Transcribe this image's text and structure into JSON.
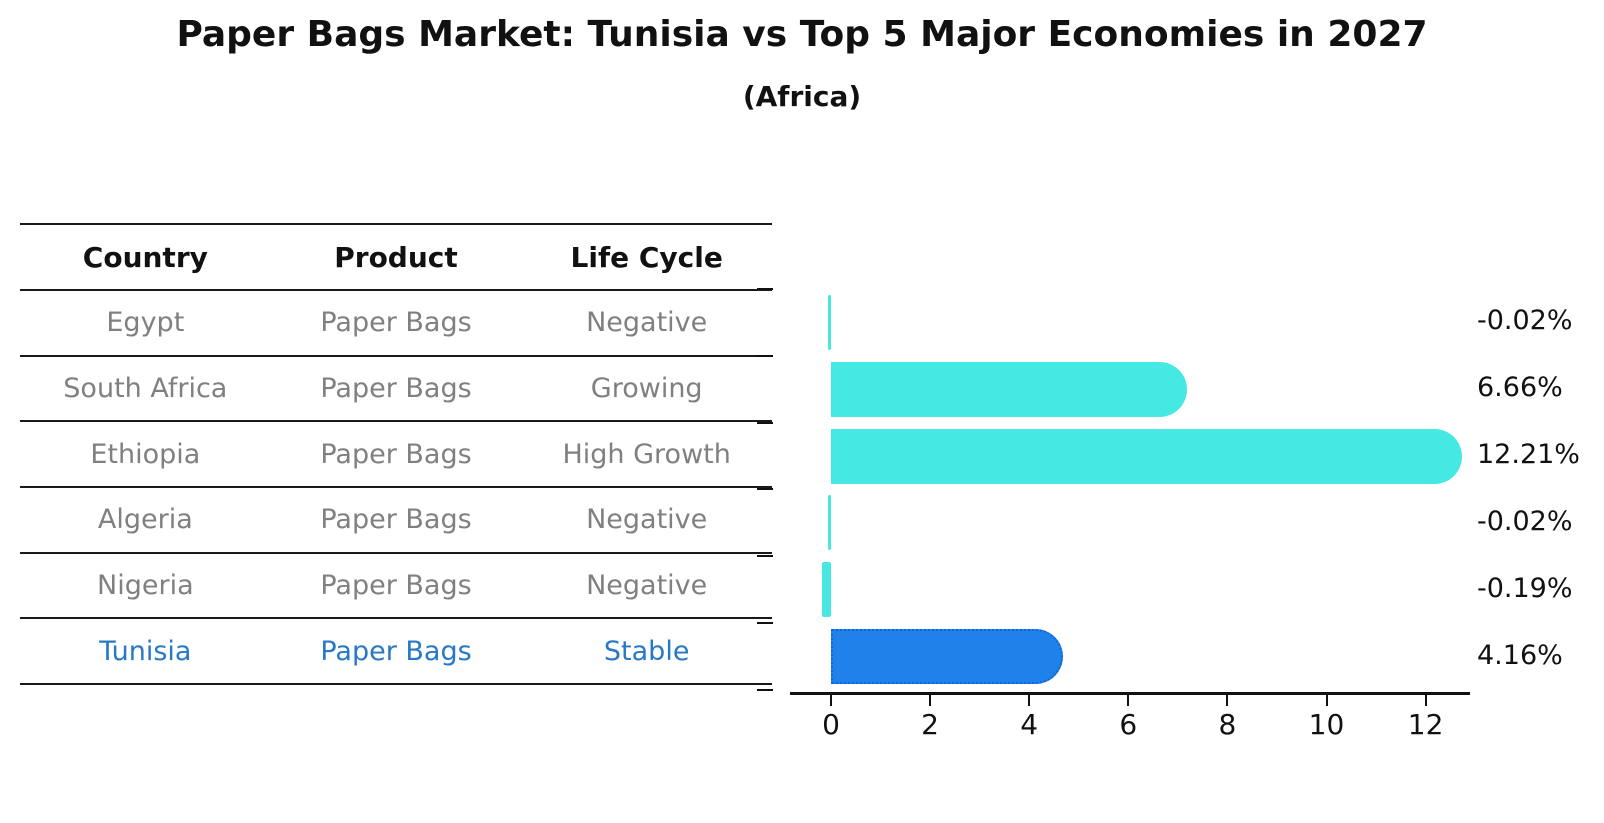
{
  "title": "Paper Bags Market: Tunisia vs Top 5 Major Economies in 2027",
  "subtitle": "(Africa)",
  "table": {
    "headers": [
      "Country",
      "Product",
      "Life Cycle"
    ],
    "rows": [
      {
        "country": "Egypt",
        "product": "Paper Bags",
        "life_cycle": "Negative",
        "highlight": false
      },
      {
        "country": "South Africa",
        "product": "Paper Bags",
        "life_cycle": "Growing",
        "highlight": false
      },
      {
        "country": "Ethiopia",
        "product": "Paper Bags",
        "life_cycle": "High Growth",
        "highlight": false
      },
      {
        "country": "Algeria",
        "product": "Paper Bags",
        "life_cycle": "Negative",
        "highlight": false
      },
      {
        "country": "Nigeria",
        "product": "Paper Bags",
        "life_cycle": "Negative",
        "highlight": false
      },
      {
        "country": "Tunisia",
        "product": "Paper Bags",
        "life_cycle": "Stable",
        "highlight": true
      }
    ],
    "text_color": "#808080",
    "highlight_text_color": "#2878C8"
  },
  "chart_data": {
    "type": "bar",
    "orientation": "horizontal",
    "title": "Paper Bags Market: Tunisia vs Top 5 Major Economies in 2027",
    "subtitle": "(Africa)",
    "categories": [
      "Egypt",
      "South Africa",
      "Ethiopia",
      "Algeria",
      "Nigeria",
      "Tunisia"
    ],
    "values": [
      -0.02,
      6.66,
      12.21,
      -0.02,
      -0.19,
      4.16
    ],
    "value_labels": [
      "-0.02%",
      "6.66%",
      "12.21%",
      "-0.02%",
      "-0.19%",
      "4.16%"
    ],
    "xlabel": "",
    "ylabel": "",
    "xticks": [
      0,
      2,
      4,
      6,
      8,
      10,
      12
    ],
    "xlim": [
      -0.85,
      12.9
    ],
    "grid": false,
    "legend": false,
    "bar_color": "#45E8E2",
    "highlight_bar_color": "#1E82EA",
    "highlight_border_color": "#1565D8",
    "highlight_index": 5,
    "axis_color": "#111111"
  }
}
